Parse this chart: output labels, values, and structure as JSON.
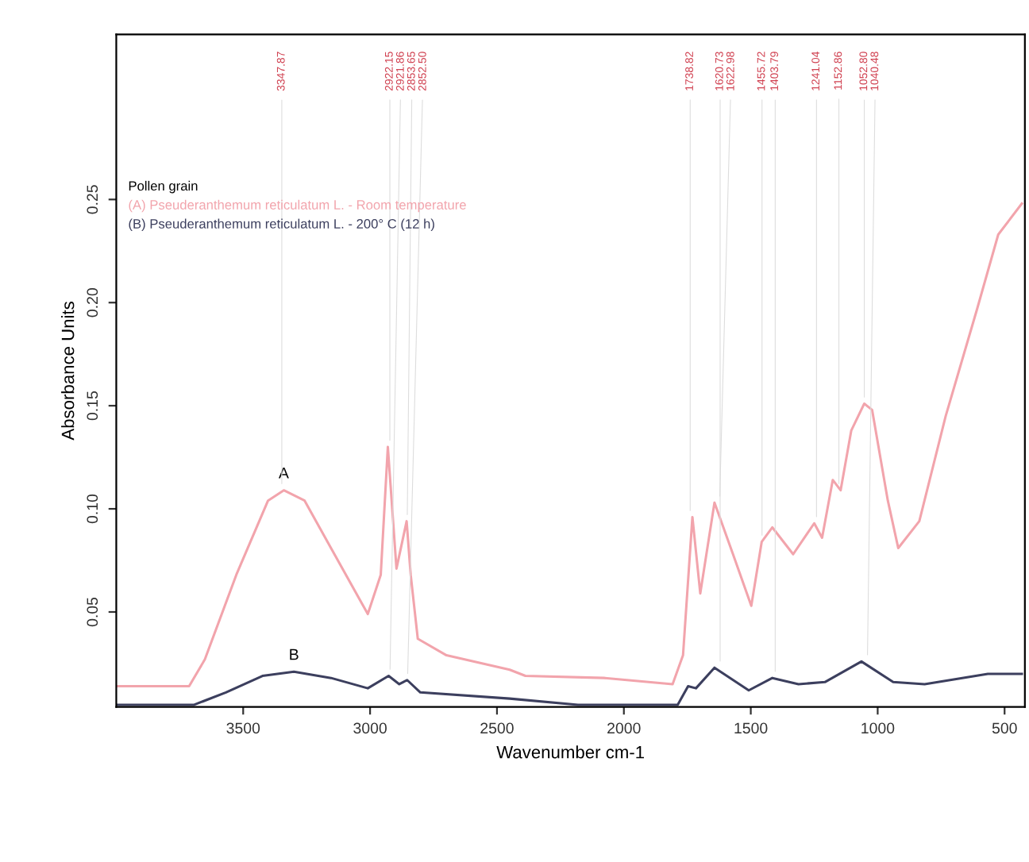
{
  "chart_data": {
    "type": "line",
    "xlabel": "Wavenumber cm-1",
    "ylabel": "Absorbance Units",
    "legend_title": "Pollen grain",
    "legend": "top left",
    "grid": false,
    "marker": "none",
    "line_style": "solid",
    "xlim": [
      4000,
      420
    ],
    "ylim": [
      0.004,
      0.33
    ],
    "xticks": [
      3500,
      3000,
      2500,
      2000,
      1500,
      1000,
      500
    ],
    "yticks": [
      0.05,
      {
        "value": 0.1,
        "label": "0.10"
      },
      0.15,
      {
        "value": 0.2,
        "label": "0.20"
      },
      0.25
    ],
    "series": [
      {
        "name": "(A) Pseuderanthemum reticulatum L. - Room temperature",
        "color": "#f2a4ac",
        "x": [
          4000,
          3713,
          3651,
          3527,
          3402,
          3340,
          3258,
          3154,
          3009,
          2958,
          2930,
          2896,
          2856,
          2840,
          2812,
          2699,
          2450,
          2388,
          2078,
          1808,
          1767,
          1730,
          1699,
          1643,
          1570,
          1498,
          1457,
          1415,
          1333,
          1250,
          1219,
          1177,
          1146,
          1104,
          1053,
          1022,
          960,
          919,
          836,
          732,
          608,
          525,
          432
        ],
        "values": [
          0.014,
          0.014,
          0.027,
          0.068,
          0.104,
          0.109,
          0.104,
          0.081,
          0.049,
          0.068,
          0.13,
          0.071,
          0.094,
          0.068,
          0.037,
          0.029,
          0.022,
          0.019,
          0.018,
          0.015,
          0.029,
          0.096,
          0.059,
          0.103,
          0.078,
          0.053,
          0.084,
          0.091,
          0.078,
          0.093,
          0.086,
          0.114,
          0.109,
          0.138,
          0.151,
          0.148,
          0.104,
          0.081,
          0.094,
          0.145,
          0.197,
          0.233,
          0.248
        ]
      },
      {
        "name": "(B) Pseuderanthemum reticulatum L. - 200° C (12 h)",
        "color": "#3c3f5e",
        "x": [
          4000,
          3693,
          3568,
          3424,
          3300,
          3154,
          3009,
          2927,
          2885,
          2854,
          2802,
          2450,
          2181,
          1788,
          1747,
          1716,
          1643,
          1508,
          1415,
          1312,
          1208,
          1064,
          939,
          815,
          566,
          432
        ],
        "values": [
          0.005,
          0.005,
          0.011,
          0.019,
          0.021,
          0.018,
          0.013,
          0.019,
          0.015,
          0.017,
          0.011,
          0.008,
          0.005,
          0.005,
          0.014,
          0.013,
          0.023,
          0.012,
          0.018,
          0.015,
          0.016,
          0.026,
          0.016,
          0.015,
          0.02,
          0.02
        ]
      }
    ],
    "annotations": [
      {
        "text": "A",
        "x": 3340,
        "y": 0.109
      },
      {
        "text": "B",
        "x": 3300,
        "y": 0.021
      },
      {
        "text": "3347.87",
        "x": 3347.87,
        "y": 0.109
      },
      {
        "text": "2922.15",
        "x": 2922.15,
        "y": 0.13
      },
      {
        "text": "2921.86",
        "x": 2921.86,
        "y": 0.019
      },
      {
        "text": "2853.65",
        "x": 2853.65,
        "y": 0.094
      },
      {
        "text": "2852.50",
        "x": 2852.5,
        "y": 0.017
      },
      {
        "text": "1738.82",
        "x": 1738.82,
        "y": 0.096
      },
      {
        "text": "1620.73",
        "x": 1620.73,
        "y": 0.023
      },
      {
        "text": "1622.98",
        "x": 1622.98,
        "y": 0.103
      },
      {
        "text": "1455.72",
        "x": 1455.72,
        "y": 0.084
      },
      {
        "text": "1403.79",
        "x": 1403.79,
        "y": 0.018
      },
      {
        "text": "1241.04",
        "x": 1241.04,
        "y": 0.093
      },
      {
        "text": "1152.86",
        "x": 1152.86,
        "y": 0.109
      },
      {
        "text": "1052.80",
        "x": 1052.8,
        "y": 0.151
      },
      {
        "text": "1040.48",
        "x": 1040.48,
        "y": 0.026
      }
    ]
  }
}
